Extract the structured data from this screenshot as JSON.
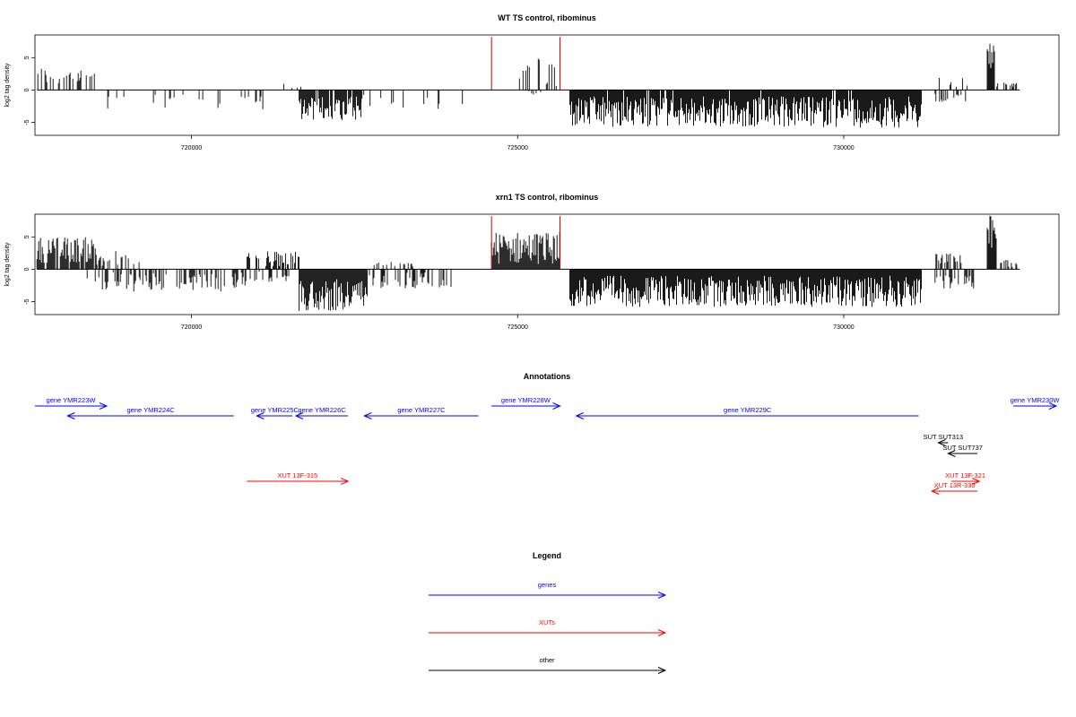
{
  "chart_data": [
    {
      "type": "bar",
      "title": "WT TS control, ribominus",
      "ylabel": "log2 tag density",
      "xlabel": "",
      "xlim": [
        717600,
        733300
      ],
      "ylim": [
        -7,
        8.5
      ],
      "yticks": [
        -5,
        0,
        5
      ],
      "xticks": [
        720000,
        725000,
        730000
      ],
      "grid": false,
      "series": [
        {
          "color": "#000000",
          "segments": [
            {
              "start": 717630,
              "end": 718550,
              "sign": 1,
              "min": 0.6,
              "max": 3.6,
              "density": 0.35
            },
            {
              "start": 718550,
              "end": 721300,
              "sign": -1,
              "min": 0.4,
              "max": 3.0,
              "density": 0.1
            },
            {
              "start": 719650,
              "end": 719800,
              "sign": -1,
              "min": 1.0,
              "max": 2.5,
              "density": 0.3
            },
            {
              "start": 720900,
              "end": 721100,
              "sign": -1,
              "min": 0.8,
              "max": 2.2,
              "density": 0.4
            },
            {
              "start": 721400,
              "end": 721700,
              "sign": 1,
              "min": 0.3,
              "max": 1.0,
              "density": 0.2
            },
            {
              "start": 721650,
              "end": 722600,
              "sign": -1,
              "min": 1.0,
              "max": 4.8,
              "density": 0.9
            },
            {
              "start": 722600,
              "end": 724200,
              "sign": -1,
              "min": 0.4,
              "max": 3.0,
              "density": 0.14
            },
            {
              "start": 725000,
              "end": 725650,
              "sign": 1,
              "min": 0.5,
              "max": 5.2,
              "density": 0.3
            },
            {
              "start": 725050,
              "end": 725500,
              "sign": -1,
              "min": 0.2,
              "max": 0.8,
              "density": 0.15
            },
            {
              "start": 725800,
              "end": 731200,
              "sign": -1,
              "min": 1.0,
              "max": 5.8,
              "density": 0.95
            },
            {
              "start": 731450,
              "end": 731900,
              "sign": 1,
              "min": 0.5,
              "max": 2.3,
              "density": 0.2
            },
            {
              "start": 731400,
              "end": 731900,
              "sign": -1,
              "min": 0.5,
              "max": 2.0,
              "density": 0.25
            },
            {
              "start": 732200,
              "end": 732320,
              "sign": 1,
              "min": 2.5,
              "max": 7.8,
              "density": 1.0
            },
            {
              "start": 732320,
              "end": 732700,
              "sign": 1,
              "min": 0.3,
              "max": 1.2,
              "density": 0.25
            }
          ]
        }
      ],
      "markers": [
        {
          "x": 724600,
          "color": "#cc0000"
        },
        {
          "x": 725650,
          "color": "#cc0000"
        }
      ]
    },
    {
      "type": "bar",
      "title": "xrn1 TS control, ribominus",
      "ylabel": "log2 tag density",
      "xlabel": "",
      "xlim": [
        717600,
        733300
      ],
      "ylim": [
        -7,
        8.5
      ],
      "yticks": [
        -5,
        0,
        5
      ],
      "xticks": [
        720000,
        725000,
        730000
      ],
      "grid": false,
      "series": [
        {
          "color": "#000000",
          "segments": [
            {
              "start": 717630,
              "end": 718550,
              "sign": 1,
              "min": 1.0,
              "max": 5.0,
              "density": 0.8
            },
            {
              "start": 718550,
              "end": 719200,
              "sign": 1,
              "min": 0.5,
              "max": 3.0,
              "density": 0.5
            },
            {
              "start": 718400,
              "end": 720900,
              "sign": -1,
              "min": 0.4,
              "max": 3.5,
              "density": 0.4
            },
            {
              "start": 720850,
              "end": 721650,
              "sign": 1,
              "min": 0.5,
              "max": 2.8,
              "density": 0.6
            },
            {
              "start": 720900,
              "end": 721600,
              "sign": -1,
              "min": 0.3,
              "max": 2.0,
              "density": 0.3
            },
            {
              "start": 721650,
              "end": 722700,
              "sign": -1,
              "min": 1.5,
              "max": 6.5,
              "density": 1.0
            },
            {
              "start": 722700,
              "end": 724000,
              "sign": -1,
              "min": 0.3,
              "max": 3.0,
              "density": 0.4
            },
            {
              "start": 722800,
              "end": 723400,
              "sign": 1,
              "min": 0.3,
              "max": 1.2,
              "density": 0.3
            },
            {
              "start": 724600,
              "end": 725650,
              "sign": 1,
              "min": 0.8,
              "max": 5.8,
              "density": 1.0
            },
            {
              "start": 725800,
              "end": 731200,
              "sign": -1,
              "min": 1.0,
              "max": 5.8,
              "density": 1.0
            },
            {
              "start": 731400,
              "end": 731800,
              "sign": 1,
              "min": 0.8,
              "max": 2.6,
              "density": 0.6
            },
            {
              "start": 731400,
              "end": 732000,
              "sign": -1,
              "min": 0.5,
              "max": 3.0,
              "density": 0.5
            },
            {
              "start": 732200,
              "end": 732350,
              "sign": 1,
              "min": 2.5,
              "max": 8.4,
              "density": 1.0
            },
            {
              "start": 732350,
              "end": 732700,
              "sign": 1,
              "min": 0.3,
              "max": 1.5,
              "density": 0.3
            }
          ]
        }
      ],
      "markers": [
        {
          "x": 724600,
          "color": "#cc0000"
        },
        {
          "x": 725650,
          "color": "#cc0000"
        }
      ]
    }
  ],
  "annotations": {
    "title": "Annotations",
    "features": [
      {
        "label": "gene YMR223W",
        "kind": "gene",
        "start": 717600,
        "end": 718700,
        "strand": "+",
        "row": 0
      },
      {
        "label": "gene YMR224C",
        "kind": "gene",
        "start": 718100,
        "end": 720650,
        "strand": "-",
        "row": 1
      },
      {
        "label": "gene YMR225C",
        "kind": "gene",
        "start": 721000,
        "end": 721550,
        "strand": "-",
        "row": 1
      },
      {
        "label": "gene YMR226C",
        "kind": "gene",
        "start": 721600,
        "end": 722400,
        "strand": "-",
        "row": 1
      },
      {
        "label": "gene YMR227C",
        "kind": "gene",
        "start": 722650,
        "end": 724400,
        "strand": "-",
        "row": 1
      },
      {
        "label": "gene YMR228W",
        "kind": "gene",
        "start": 724600,
        "end": 725650,
        "strand": "+",
        "row": 0
      },
      {
        "label": "gene YMR229C",
        "kind": "gene",
        "start": 725900,
        "end": 731150,
        "strand": "-",
        "row": 1
      },
      {
        "label": "gene YMR230W",
        "kind": "gene",
        "start": 732600,
        "end": 733300,
        "strand": "+",
        "row": 0
      },
      {
        "label": "SUT SUT313",
        "kind": "other",
        "start": 731450,
        "end": 731600,
        "strand": "-",
        "row": 2
      },
      {
        "label": "SUT SUT737",
        "kind": "other",
        "start": 731600,
        "end": 732050,
        "strand": "-",
        "row": 3
      },
      {
        "label": "XUT 13F-315",
        "kind": "xut",
        "start": 720850,
        "end": 722400,
        "strand": "+",
        "row": 4
      },
      {
        "label": "XUT 13F-321",
        "kind": "xut",
        "start": 731650,
        "end": 732080,
        "strand": "+",
        "row": 4
      },
      {
        "label": "XUT 13R-330",
        "kind": "xut",
        "start": 731350,
        "end": 732050,
        "strand": "-",
        "row": 5
      }
    ]
  },
  "legend": {
    "title": "Legend",
    "items": [
      {
        "label": "genes",
        "color": "#0000ff"
      },
      {
        "label": "XUTs",
        "color": "#ff0000"
      },
      {
        "label": "other",
        "color": "#000000"
      }
    ]
  },
  "colors": {
    "gene": "#0000ff",
    "xut": "#ff0000",
    "other": "#000000",
    "marker": "#cc0000"
  }
}
